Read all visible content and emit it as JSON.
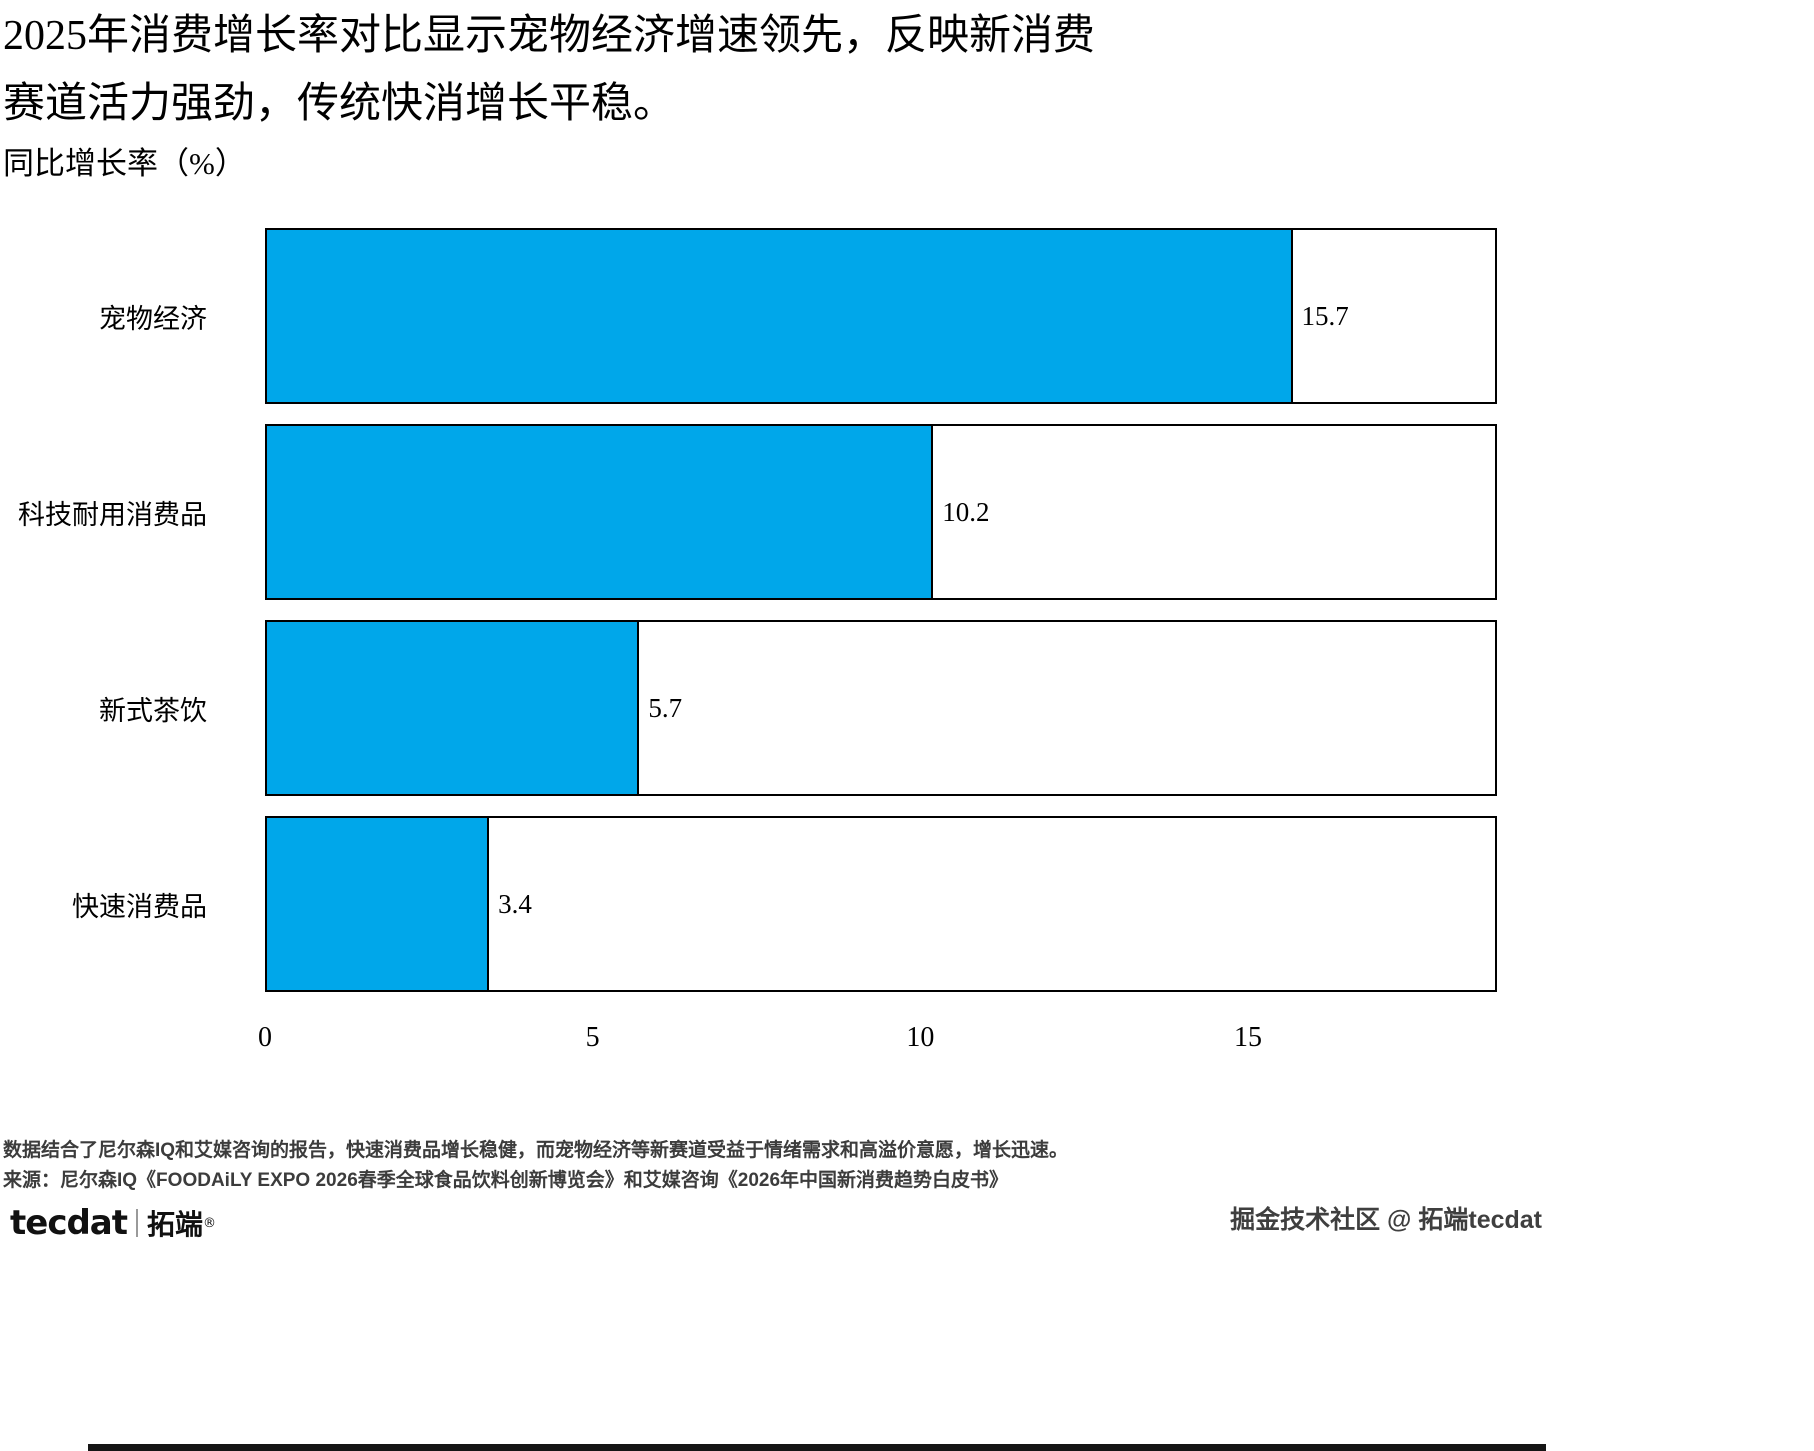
{
  "title": {
    "line1": "2025年消费增长率对比显示宠物经济增速领先，反映新消费",
    "line2": "赛道活力强劲，传统快消增长平稳。"
  },
  "axis_label": "同比增长率（%）",
  "chart_data": {
    "type": "bar",
    "orientation": "horizontal",
    "title": "2025年消费增长率对比显示宠物经济增速领先，反映新消费赛道活力强劲，传统快消增长平稳。",
    "ylabel": "同比增长率（%）",
    "categories": [
      "宠物经济",
      "科技耐用消费品",
      "新式茶饮",
      "快速消费品"
    ],
    "values": [
      15.7,
      10.2,
      5.7,
      3.4
    ],
    "value_labels": [
      "15.7",
      "10.2",
      "5.7",
      "3.4"
    ],
    "xlim": [
      0,
      18.8
    ],
    "xtick_values": [
      0,
      5,
      10,
      15
    ],
    "xticks": [
      "0",
      "5",
      "10",
      "15"
    ],
    "grid": false,
    "legend": false,
    "bar_color": "#00A7EA",
    "bar_border_color": "#000000"
  },
  "notes": {
    "line1": "数据结合了尼尔森IQ和艾媒咨询的报告，快速消费品增长稳健，而宠物经济等新赛道受益于情绪需求和高溢价意愿，增长迅速。",
    "line2": "来源：尼尔森IQ《FOODAiLY EXPO 2026春季全球食品饮料创新博览会》和艾媒咨询《2026年中国新消费趋势白皮书》"
  },
  "footer": {
    "logo_text": "tecdat",
    "logo_cn": "拓端",
    "registered": "®",
    "right_text": "掘金技术社区 @ 拓端tecdat"
  }
}
